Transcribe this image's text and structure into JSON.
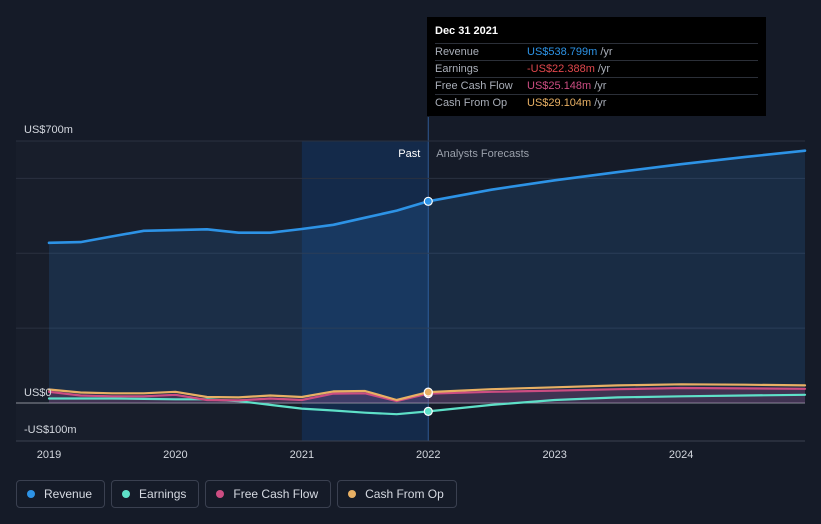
{
  "chart_data": {
    "type": "line",
    "x_unit": "year",
    "xlim": [
      2018.9,
      2024.98
    ],
    "ylim": [
      -100,
      700
    ],
    "x_ticks": [
      "2019",
      "2020",
      "2021",
      "2022",
      "2023",
      "2024"
    ],
    "y_labels": {
      "top": "US$700m",
      "zero": "US$0",
      "bottom": "-US$100m"
    },
    "regions": {
      "past_label": "Past",
      "forecast_label": "Analysts Forecasts",
      "divider_x": 2022.0
    },
    "series": [
      {
        "name": "Revenue",
        "color": "#2d93e6",
        "points": [
          [
            2019.0,
            428
          ],
          [
            2019.25,
            430
          ],
          [
            2019.5,
            445
          ],
          [
            2019.75,
            460
          ],
          [
            2020.0,
            462
          ],
          [
            2020.25,
            464
          ],
          [
            2020.5,
            455
          ],
          [
            2020.75,
            455
          ],
          [
            2021.0,
            465
          ],
          [
            2021.25,
            476
          ],
          [
            2021.5,
            495
          ],
          [
            2021.75,
            514
          ],
          [
            2022.0,
            538.8
          ],
          [
            2022.5,
            570
          ],
          [
            2023.0,
            595
          ],
          [
            2023.5,
            617
          ],
          [
            2024.0,
            638
          ],
          [
            2024.5,
            657
          ],
          [
            2024.98,
            674
          ]
        ]
      },
      {
        "name": "Earnings",
        "color": "#5ee0c8",
        "points": [
          [
            2019.0,
            12
          ],
          [
            2019.5,
            12
          ],
          [
            2019.75,
            11
          ],
          [
            2020.0,
            10
          ],
          [
            2020.25,
            10
          ],
          [
            2020.5,
            5
          ],
          [
            2020.75,
            -5
          ],
          [
            2021.0,
            -15
          ],
          [
            2021.25,
            -20
          ],
          [
            2021.5,
            -26
          ],
          [
            2021.75,
            -30
          ],
          [
            2022.0,
            -22.388
          ],
          [
            2022.5,
            -5
          ],
          [
            2023.0,
            8
          ],
          [
            2023.5,
            15
          ],
          [
            2024.0,
            18
          ],
          [
            2024.5,
            20
          ],
          [
            2024.98,
            22
          ]
        ]
      },
      {
        "name": "Free Cash Flow",
        "color": "#cc4d82",
        "points": [
          [
            2019.0,
            30
          ],
          [
            2019.25,
            20
          ],
          [
            2019.5,
            18
          ],
          [
            2019.75,
            18
          ],
          [
            2020.0,
            22
          ],
          [
            2020.25,
            8
          ],
          [
            2020.5,
            7
          ],
          [
            2020.75,
            12
          ],
          [
            2021.0,
            8
          ],
          [
            2021.25,
            25
          ],
          [
            2021.5,
            26
          ],
          [
            2021.75,
            5
          ],
          [
            2022.0,
            25.148
          ],
          [
            2022.5,
            30
          ],
          [
            2023.0,
            33
          ],
          [
            2023.5,
            37
          ],
          [
            2024.0,
            40
          ],
          [
            2024.5,
            39
          ],
          [
            2024.98,
            38
          ]
        ]
      },
      {
        "name": "Cash From Op",
        "color": "#e8b064",
        "points": [
          [
            2019.0,
            36
          ],
          [
            2019.25,
            28
          ],
          [
            2019.5,
            26
          ],
          [
            2019.75,
            26
          ],
          [
            2020.0,
            30
          ],
          [
            2020.25,
            16
          ],
          [
            2020.5,
            15
          ],
          [
            2020.75,
            20
          ],
          [
            2021.0,
            16
          ],
          [
            2021.25,
            31
          ],
          [
            2021.5,
            32
          ],
          [
            2021.75,
            8
          ],
          [
            2022.0,
            29.104
          ],
          [
            2022.5,
            37
          ],
          [
            2023.0,
            42
          ],
          [
            2023.5,
            47
          ],
          [
            2024.0,
            50
          ],
          [
            2024.5,
            49
          ],
          [
            2024.98,
            47
          ]
        ]
      }
    ]
  },
  "tooltip": {
    "date": "Dec 31 2021",
    "rows": [
      {
        "label": "Revenue",
        "value": "US$538.799m",
        "unit": "/yr",
        "color": "#2d93e6"
      },
      {
        "label": "Earnings",
        "value": "-US$22.388m",
        "unit": "/yr",
        "color": "#e0474c"
      },
      {
        "label": "Free Cash Flow",
        "value": "US$25.148m",
        "unit": "/yr",
        "color": "#cc4d82"
      },
      {
        "label": "Cash From Op",
        "value": "US$29.104m",
        "unit": "/yr",
        "color": "#e8b064"
      }
    ]
  },
  "legend": [
    {
      "label": "Revenue",
      "color": "#2d93e6"
    },
    {
      "label": "Earnings",
      "color": "#5ee0c8"
    },
    {
      "label": "Free Cash Flow",
      "color": "#cc4d82"
    },
    {
      "label": "Cash From Op",
      "color": "#e8b064"
    }
  ]
}
